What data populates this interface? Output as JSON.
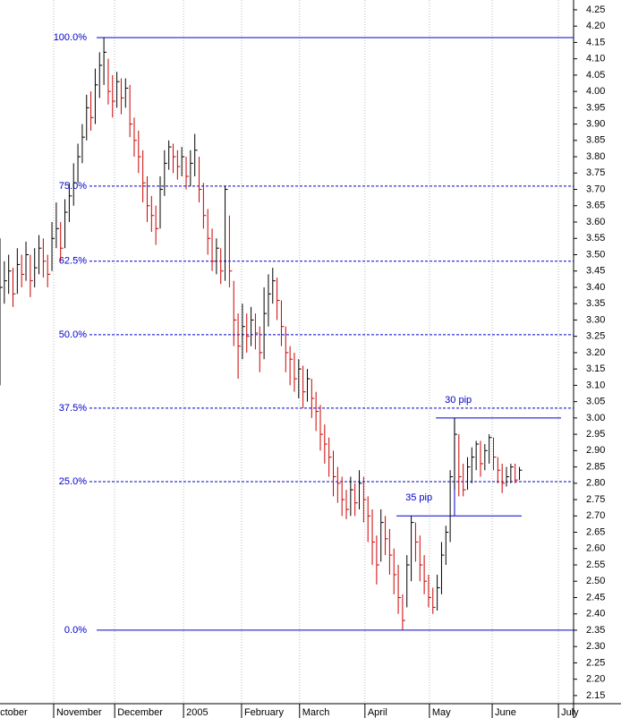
{
  "chart_data": {
    "type": "hlc",
    "x": [
      0,
      1,
      2,
      3,
      4,
      5,
      6,
      7,
      8,
      9,
      10,
      11,
      12,
      13,
      14,
      15,
      16,
      17,
      18,
      19,
      20,
      21,
      22,
      23,
      24,
      25,
      26,
      27,
      28,
      29,
      30,
      31,
      32,
      33,
      34,
      35,
      36,
      37,
      38,
      39,
      40,
      41,
      42,
      43,
      44,
      45,
      46,
      47,
      48,
      49,
      50,
      51,
      52,
      53,
      54,
      55,
      56,
      57,
      58,
      59,
      60,
      61,
      62,
      63,
      64,
      65,
      66,
      67,
      68,
      69,
      70,
      71,
      72,
      73,
      74,
      75,
      76,
      77,
      78,
      79,
      80,
      81,
      82,
      83,
      84,
      85,
      86,
      87,
      88,
      89,
      90,
      91,
      92,
      93,
      94,
      95,
      96,
      97,
      98,
      99,
      100,
      101,
      102,
      103,
      104,
      105,
      106,
      107,
      108,
      109,
      110,
      111,
      112,
      113,
      114,
      115,
      116,
      117,
      118,
      119,
      120
    ],
    "high": [
      3.55,
      3.48,
      3.5,
      3.46,
      3.52,
      3.5,
      3.54,
      3.5,
      3.52,
      3.56,
      3.55,
      3.5,
      3.6,
      3.66,
      3.6,
      3.67,
      3.72,
      3.78,
      3.84,
      3.9,
      3.99,
      4.0,
      4.07,
      4.12,
      4.165,
      4.1,
      4.05,
      4.06,
      4.04,
      4.04,
      4.02,
      3.92,
      3.88,
      3.82,
      3.74,
      3.68,
      3.65,
      3.74,
      3.82,
      3.85,
      3.84,
      3.82,
      3.83,
      3.8,
      3.82,
      3.87,
      3.8,
      3.72,
      3.64,
      3.58,
      3.55,
      3.52,
      3.71,
      3.62,
      3.42,
      3.32,
      3.35,
      3.32,
      3.34,
      3.32,
      3.28,
      3.4,
      3.44,
      3.46,
      3.43,
      3.36,
      3.28,
      3.22,
      3.2,
      3.18,
      3.16,
      3.15,
      3.12,
      3.08,
      3.04,
      2.98,
      2.94,
      2.9,
      2.85,
      2.82,
      2.78,
      2.82,
      2.8,
      2.84,
      2.82,
      2.76,
      2.72,
      2.64,
      2.72,
      2.7,
      2.66,
      2.6,
      2.55,
      2.46,
      2.58,
      2.7,
      2.68,
      2.64,
      2.58,
      2.52,
      2.48,
      2.52,
      2.62,
      2.67,
      2.84,
      3.0,
      2.95,
      2.86,
      2.88,
      2.91,
      2.93,
      2.93,
      2.92,
      2.95,
      2.94,
      2.88,
      2.86,
      2.85,
      2.86,
      2.86,
      2.85
    ],
    "low": [
      3.1,
      3.35,
      3.38,
      3.34,
      3.38,
      3.4,
      3.42,
      3.37,
      3.4,
      3.44,
      3.43,
      3.4,
      3.45,
      3.52,
      3.48,
      3.52,
      3.6,
      3.65,
      3.72,
      3.78,
      3.85,
      3.88,
      3.9,
      3.98,
      4.02,
      3.96,
      3.92,
      3.95,
      3.93,
      3.95,
      3.86,
      3.8,
      3.75,
      3.66,
      3.6,
      3.57,
      3.53,
      3.58,
      3.68,
      3.76,
      3.75,
      3.73,
      3.74,
      3.7,
      3.71,
      3.74,
      3.66,
      3.58,
      3.5,
      3.45,
      3.44,
      3.41,
      3.42,
      3.4,
      3.22,
      3.12,
      3.18,
      3.2,
      3.22,
      3.21,
      3.14,
      3.18,
      3.28,
      3.35,
      3.3,
      3.22,
      3.14,
      3.1,
      3.08,
      3.06,
      3.03,
      3.05,
      3.0,
      2.96,
      2.9,
      2.86,
      2.82,
      2.76,
      2.74,
      2.7,
      2.69,
      2.7,
      2.7,
      2.72,
      2.68,
      2.62,
      2.55,
      2.49,
      2.56,
      2.58,
      2.52,
      2.46,
      2.4,
      2.35,
      2.42,
      2.5,
      2.56,
      2.5,
      2.46,
      2.42,
      2.4,
      2.41,
      2.46,
      2.55,
      2.62,
      2.78,
      2.76,
      2.76,
      2.78,
      2.8,
      2.84,
      2.82,
      2.84,
      2.86,
      2.84,
      2.8,
      2.77,
      2.79,
      2.8,
      2.8,
      2.81
    ],
    "close": [
      3.4,
      3.42,
      3.45,
      3.38,
      3.47,
      3.44,
      3.5,
      3.42,
      3.46,
      3.52,
      3.48,
      3.44,
      3.55,
      3.58,
      3.52,
      3.63,
      3.68,
      3.72,
      3.8,
      3.86,
      3.95,
      3.92,
      4.02,
      4.08,
      4.12,
      4.0,
      3.97,
      4.03,
      3.98,
      4.01,
      3.9,
      3.85,
      3.8,
      3.72,
      3.65,
      3.62,
      3.58,
      3.7,
      3.78,
      3.83,
      3.8,
      3.77,
      3.8,
      3.74,
      3.78,
      3.82,
      3.7,
      3.62,
      3.55,
      3.48,
      3.52,
      3.45,
      3.7,
      3.45,
      3.3,
      3.22,
      3.28,
      3.25,
      3.3,
      3.26,
      3.2,
      3.32,
      3.38,
      3.42,
      3.36,
      3.28,
      3.2,
      3.18,
      3.12,
      3.15,
      3.08,
      3.12,
      3.06,
      3.02,
      2.95,
      2.92,
      2.88,
      2.82,
      2.8,
      2.75,
      2.72,
      2.78,
      2.74,
      2.8,
      2.75,
      2.7,
      2.62,
      2.55,
      2.68,
      2.63,
      2.58,
      2.52,
      2.45,
      2.38,
      2.55,
      2.68,
      2.62,
      2.55,
      2.5,
      2.45,
      2.42,
      2.48,
      2.58,
      2.65,
      2.82,
      2.95,
      2.82,
      2.78,
      2.85,
      2.88,
      2.92,
      2.86,
      2.9,
      2.94,
      2.88,
      2.84,
      2.8,
      2.82,
      2.85,
      2.81,
      2.84
    ],
    "up_color": "#000000",
    "down_color": "#cc0000",
    "xlim": [
      0,
      132.5
    ],
    "xticks": [
      {
        "value": -0.6,
        "label": "ctober"
      },
      {
        "value": 12.4,
        "label": "November"
      },
      {
        "value": 26.5,
        "label": "December"
      },
      {
        "value": 42.4,
        "label": "2005"
      },
      {
        "value": 55.8,
        "label": "February"
      },
      {
        "value": 69.2,
        "label": "March"
      },
      {
        "value": 84.3,
        "label": "April"
      },
      {
        "value": 99.2,
        "label": "May"
      },
      {
        "value": 113.7,
        "label": "June"
      },
      {
        "value": 129,
        "label": "July"
      }
    ],
    "ylim": [
      2.125,
      4.28
    ],
    "yticks": [
      2.15,
      {
        "value": 2.2,
        "label": "2.20"
      },
      2.25,
      {
        "value": 2.3,
        "label": "2.30"
      },
      2.35,
      {
        "value": 2.4,
        "label": "2.40"
      },
      2.45,
      {
        "value": 2.5,
        "label": "2.50"
      },
      2.55,
      {
        "value": 2.6,
        "label": "2.60"
      },
      2.65,
      {
        "value": 2.7,
        "label": "2.70"
      },
      2.75,
      {
        "value": 2.8,
        "label": "2.80"
      },
      2.85,
      {
        "value": 2.9,
        "label": "2.90"
      },
      2.95,
      {
        "value": 3,
        "label": "3.00"
      },
      3.05,
      {
        "value": 3.1,
        "label": "3.10"
      },
      3.15,
      {
        "value": 3.2,
        "label": "3.20"
      },
      3.25,
      {
        "value": 3.3,
        "label": "3.30"
      },
      3.35,
      {
        "value": 3.4,
        "label": "3.40"
      },
      3.45,
      {
        "value": 3.5,
        "label": "3.50"
      },
      3.55,
      {
        "value": 3.6,
        "label": "3.60"
      },
      3.65,
      {
        "value": 3.7,
        "label": "3.70"
      },
      3.75,
      {
        "value": 3.8,
        "label": "3.80"
      },
      3.85,
      {
        "value": 3.9,
        "label": "3.90"
      },
      3.95,
      {
        "value": 4,
        "label": "4.00"
      },
      4.05,
      {
        "value": 4.1,
        "label": "4.10"
      },
      4.15,
      {
        "value": 4.2,
        "label": "4.20"
      },
      4.25
    ],
    "fib_color": "#0000cc",
    "fib_levels": [
      {
        "label": "100.0%",
        "value": 4.165,
        "style": "solid"
      },
      {
        "label": "75.0%",
        "value": 3.71,
        "style": "dashed"
      },
      {
        "label": "62.5%",
        "value": 3.48,
        "style": "dashed"
      },
      {
        "label": "50.0%",
        "value": 3.255,
        "style": "dashed"
      },
      {
        "label": "37.5%",
        "value": 3.03,
        "style": "dashed"
      },
      {
        "label": "25.0%",
        "value": 2.805,
        "style": "dashed"
      },
      {
        "label": "0.0%",
        "value": 2.35,
        "style": "solid"
      }
    ],
    "annotations": [
      {
        "text": "30 pip",
        "y": 3.0,
        "x_start": 100.7,
        "x_end": 129.6,
        "connector_x": 105,
        "connector_from": 2.7
      },
      {
        "text": "35 pip",
        "y": 2.7,
        "x_start": 91.6,
        "x_end": 120.5
      }
    ]
  }
}
